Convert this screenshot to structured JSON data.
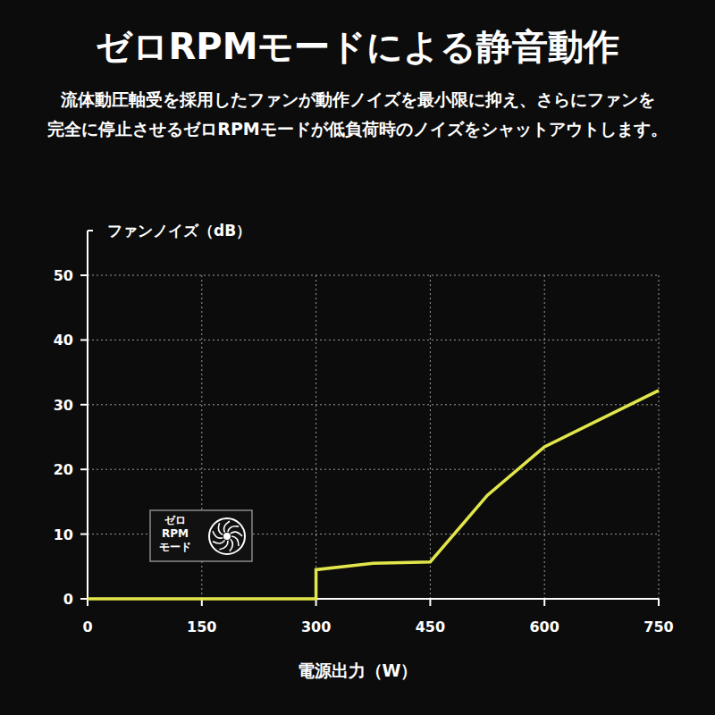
{
  "chart_data": {
    "type": "line",
    "title": "ゼロRPMモードによる静音動作",
    "subtitle": [
      "流体動圧軸受を採用したファンが動作ノイズを最小限に抑え、さらにファンを",
      "完全に停止させるゼロRPMモードが低負荷時のノイズをシャットアウトします。"
    ],
    "y_label": "ファンノイズ（dB）",
    "x_label": "電源出力（W）",
    "annotation": [
      "ゼロ",
      "RPM",
      "モード"
    ],
    "x": [
      0,
      300,
      300,
      375,
      450,
      525,
      600,
      750
    ],
    "values": [
      0,
      0,
      4.5,
      5.5,
      5.7,
      16,
      23.5,
      32.2
    ],
    "color": "#e2e64a",
    "xlim": [
      0,
      750
    ],
    "xticks": [
      0,
      150,
      300,
      450,
      600,
      750
    ],
    "ylim": [
      0,
      50
    ],
    "yticks": [
      0,
      10,
      20,
      30,
      40,
      50
    ],
    "grid": true
  }
}
